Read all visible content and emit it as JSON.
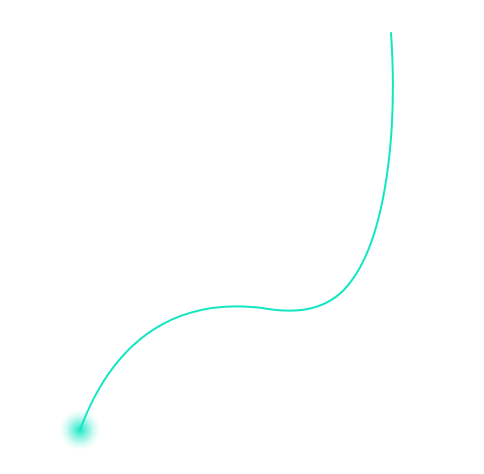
{
  "colors": {
    "background": "#ffffff",
    "curve": "#14e6c3",
    "glow": "#14e6c3"
  },
  "elements": {
    "curve": "decorative-curve-line",
    "glow": "glow-dot"
  }
}
